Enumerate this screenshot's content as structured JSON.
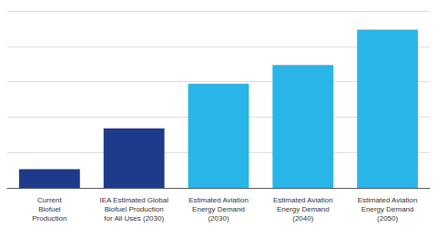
{
  "chart_data": {
    "type": "bar",
    "categories": [
      "Current\nBiofuel\nProduction",
      "IEA Estimated Global\nBiofuel Production\nfor All Uses (2030)",
      "Estimated Aviation\nEnergy Demand\n(2030)",
      "Estimated Aviation\nEnergy Demand\n(2040)",
      "Estimated Aviation\nEnergy Demand\n(2050)"
    ],
    "values": [
      1.0,
      3.2,
      5.6,
      6.6,
      8.5
    ],
    "colors": [
      "#1e3a8a",
      "#1e3a8a",
      "#29b5e8",
      "#29b5e8",
      "#29b5e8"
    ],
    "ylim": [
      0,
      9.5
    ],
    "yticks": [
      0,
      1.9,
      3.8,
      5.7,
      7.6,
      9.5
    ],
    "grid": true,
    "tick_labels": "x"
  }
}
